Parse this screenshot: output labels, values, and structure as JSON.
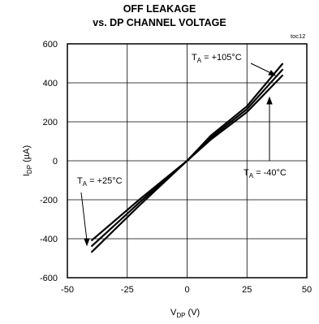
{
  "chart_data": {
    "type": "line",
    "title_line1": "OFF LEAKAGE",
    "title_line2": "vs. DP CHANNEL VOLTAGE",
    "tag": "toc12",
    "xlabel": {
      "main": "V",
      "sub": "DP",
      "unit": " (V)"
    },
    "ylabel": {
      "main": "I",
      "sub": "DP",
      "unit": " (µA)"
    },
    "xlim": [
      -50,
      50
    ],
    "ylim": [
      -600,
      600
    ],
    "xticks": [
      -50,
      -25,
      0,
      25,
      50
    ],
    "yticks": [
      600,
      400,
      200,
      0,
      -200,
      -400,
      -600
    ],
    "grid": true,
    "series": [
      {
        "name": "+105°C",
        "x": [
          -40,
          -20,
          0,
          10,
          25,
          40
        ],
        "y": [
          -470,
          -230,
          0,
          130,
          280,
          500
        ]
      },
      {
        "name": "+25°C",
        "x": [
          -40,
          -20,
          0,
          10,
          25,
          40
        ],
        "y": [
          -440,
          -215,
          0,
          120,
          265,
          470
        ]
      },
      {
        "name": "-40°C",
        "x": [
          -40,
          -20,
          0,
          10,
          25,
          40
        ],
        "y": [
          -410,
          -200,
          0,
          110,
          250,
          440
        ]
      }
    ],
    "annotations": [
      {
        "label_main": "T",
        "label_sub": "A",
        "text": " = +105°C"
      },
      {
        "label_main": "T",
        "label_sub": "A",
        "text": " = +25°C"
      },
      {
        "label_main": "T",
        "label_sub": "A",
        "text": " = -40°C"
      }
    ]
  }
}
